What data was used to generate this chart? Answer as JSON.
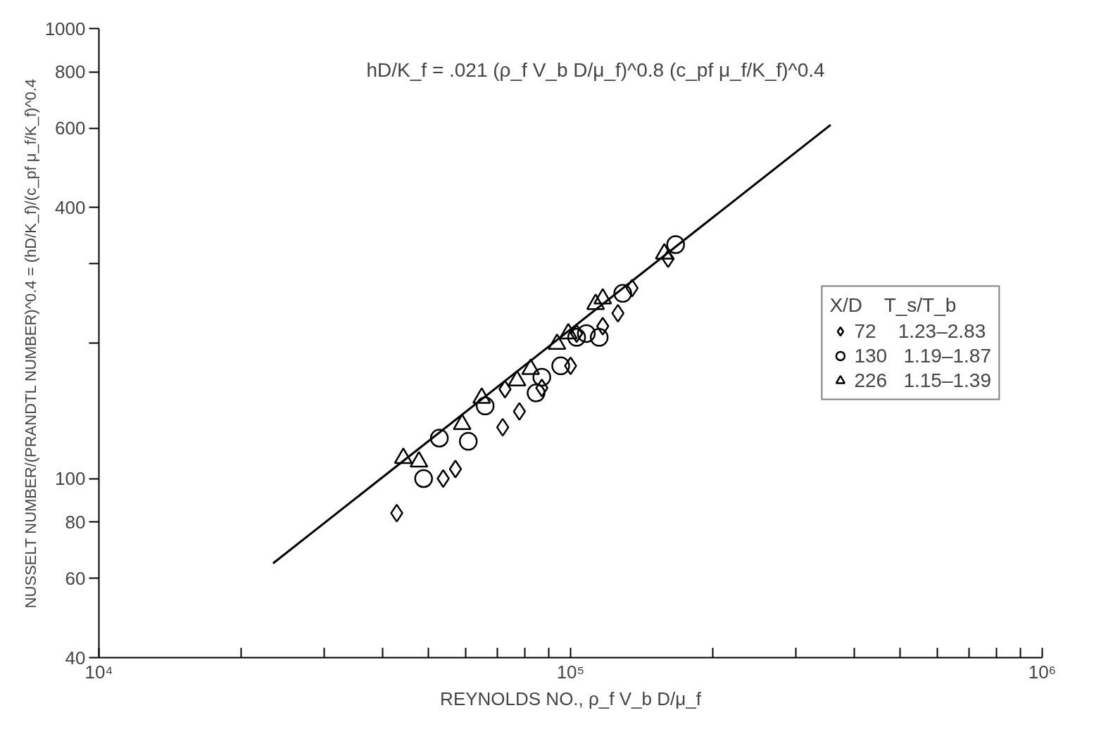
{
  "chart_data": {
    "type": "scatter",
    "xlabel": "REYNOLDS NO., ρ_f V_b D/μ_f",
    "ylabel": "NUSSELT NUMBER/(PRANDTL NUMBER)^0.4 = (hD/K_f)/(c_pf μ_f/K_f)^0.4",
    "annotations": [
      "hD/K_f = .021 (ρ_f V_b D/μ_f)^0.8 (c_pf μ_f/K_f)^0.4"
    ],
    "log": "xy",
    "grid": false,
    "legend": "right",
    "legend_title": "X/D    T_s/T_b",
    "xlim": [
      10000,
      1000000
    ],
    "xticks": [
      {
        "value": 10000,
        "label": "10⁴"
      },
      {
        "value": 20000,
        "label": null
      },
      {
        "value": 30000,
        "label": null
      },
      {
        "value": 40000,
        "label": null
      },
      {
        "value": 50000,
        "label": null
      },
      {
        "value": 60000,
        "label": null
      },
      {
        "value": 70000,
        "label": null
      },
      {
        "value": 80000,
        "label": null
      },
      {
        "value": 90000,
        "label": null
      },
      {
        "value": 100000,
        "label": "10⁵"
      },
      {
        "value": 200000,
        "label": null
      },
      {
        "value": 300000,
        "label": null
      },
      {
        "value": 400000,
        "label": null
      },
      {
        "value": 500000,
        "label": null
      },
      {
        "value": 600000,
        "label": null
      },
      {
        "value": 700000,
        "label": null
      },
      {
        "value": 800000,
        "label": null
      },
      {
        "value": 900000,
        "label": null
      },
      {
        "value": 1000000,
        "label": "10⁶"
      }
    ],
    "ylim": [
      40,
      1000
    ],
    "yticks": [
      40,
      60,
      80,
      100,
      {
        "value": 200,
        "label": null
      },
      {
        "value": 300,
        "label": null
      },
      400,
      600,
      800,
      1000
    ],
    "series": [
      {
        "name": "72    1.23–2.83",
        "color": "#000000",
        "marker": "diamond",
        "x": [
          42800,
          53700,
          57000,
          71800,
          77900,
          72600,
          86900,
          100000,
          103000,
          117000,
          126000,
          135000,
          161000
        ],
        "values": [
          83.8,
          100,
          105,
          130,
          141,
          158,
          159,
          178,
          210,
          218,
          233,
          265,
          308
        ]
      },
      {
        "name": "130   1.19–1.87",
        "color": "#000000",
        "marker": "circle",
        "x": [
          48800,
          52700,
          60700,
          65900,
          84500,
          86900,
          95300,
          108000,
          115000,
          129000,
          167000,
          103000
        ],
        "values": [
          100,
          123,
          121,
          145,
          155,
          168,
          178,
          210,
          206,
          258,
          331,
          206
        ]
      },
      {
        "name": "226   1.15–1.39",
        "color": "#000000",
        "marker": "triangle",
        "x": [
          44200,
          47700,
          58900,
          64800,
          77000,
          82300,
          93600,
          98900,
          113000,
          117000,
          158000
        ],
        "values": [
          111,
          109,
          132,
          151,
          165,
          175,
          199,
          210,
          244,
          251,
          316
        ]
      },
      {
        "type": "line",
        "color": "#000000",
        "marker": "none",
        "line_style": "solid",
        "x": [
          23400,
          356000
        ],
        "values": [
          64.8,
          611
        ]
      }
    ]
  }
}
